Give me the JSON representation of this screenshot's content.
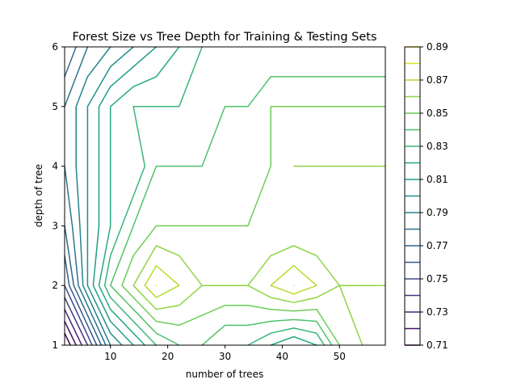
{
  "chart_data": {
    "type": "contour",
    "title": "Forest Size vs Tree Depth for Training & Testing Sets",
    "xlabel": "number of trees",
    "ylabel": "depth of tree",
    "xlim": [
      2,
      58
    ],
    "ylim": [
      1,
      6
    ],
    "x_ticks": [
      10,
      20,
      30,
      40,
      50
    ],
    "y_ticks": [
      1,
      2,
      3,
      4,
      5,
      6
    ],
    "colorbar": {
      "levels": [
        0.71,
        0.72,
        0.73,
        0.74,
        0.75,
        0.76,
        0.77,
        0.78,
        0.79,
        0.8,
        0.81,
        0.82,
        0.83,
        0.84,
        0.85,
        0.86,
        0.87,
        0.88,
        0.89
      ],
      "tick_labels": [
        "0.71",
        "0.73",
        "0.75",
        "0.77",
        "0.79",
        "0.81",
        "0.83",
        "0.85",
        "0.87",
        "0.89"
      ],
      "colormap": "viridis"
    },
    "x": [
      2,
      6,
      10,
      14,
      18,
      22,
      26,
      30,
      34,
      38,
      42,
      46,
      50,
      54,
      58
    ],
    "y": [
      1,
      2,
      3,
      4,
      5,
      6
    ],
    "z": [
      [
        0.7,
        0.74,
        0.79,
        0.81,
        0.83,
        0.84,
        0.84,
        0.83,
        0.83,
        0.82,
        0.81,
        0.82,
        0.85,
        0.86,
        0.87
      ],
      [
        0.75,
        0.8,
        0.84,
        0.86,
        0.88,
        0.87,
        0.86,
        0.86,
        0.86,
        0.87,
        0.88,
        0.87,
        0.86,
        0.86,
        0.86
      ],
      [
        0.77,
        0.8,
        0.82,
        0.84,
        0.85,
        0.85,
        0.85,
        0.85,
        0.85,
        0.85,
        0.85,
        0.85,
        0.85,
        0.85,
        0.85
      ],
      [
        0.78,
        0.8,
        0.82,
        0.82,
        0.84,
        0.84,
        0.84,
        0.84,
        0.84,
        0.85,
        0.86,
        0.86,
        0.86,
        0.86,
        0.86
      ],
      [
        0.78,
        0.8,
        0.82,
        0.83,
        0.83,
        0.83,
        0.83,
        0.84,
        0.84,
        0.85,
        0.85,
        0.85,
        0.85,
        0.85,
        0.85
      ],
      [
        0.76,
        0.78,
        0.79,
        0.8,
        0.81,
        0.82,
        0.83,
        0.83,
        0.83,
        0.83,
        0.83,
        0.83,
        0.83,
        0.83,
        0.83
      ]
    ]
  }
}
